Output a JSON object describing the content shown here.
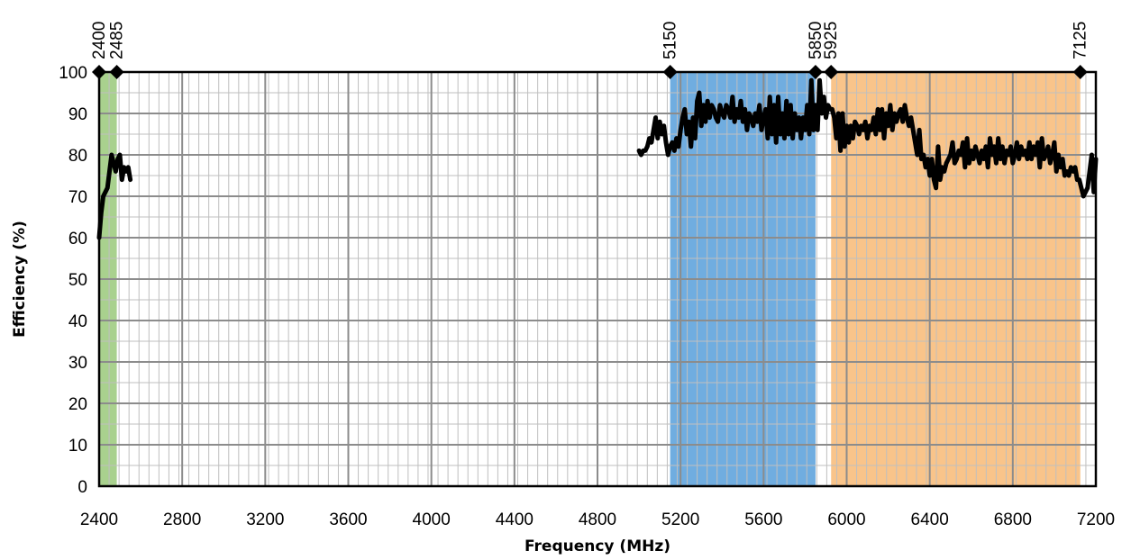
{
  "chart_data": {
    "type": "line",
    "xlabel": "Frequency (MHz)",
    "ylabel": "Efficiency (%)",
    "xlim": [
      2400,
      7200
    ],
    "ylim": [
      0,
      100
    ],
    "x_ticks": [
      2400,
      2800,
      3200,
      3600,
      4000,
      4400,
      4800,
      5200,
      5600,
      6000,
      6400,
      6800,
      7200
    ],
    "y_ticks": [
      0,
      10,
      20,
      30,
      40,
      50,
      60,
      70,
      80,
      90,
      100
    ],
    "grid": true,
    "bands": [
      {
        "start": 2400,
        "end": 2485,
        "color": "#a9d18e"
      },
      {
        "start": 5150,
        "end": 5850,
        "color": "#70ade0"
      },
      {
        "start": 5925,
        "end": 7125,
        "color": "#f9c48a"
      }
    ],
    "markers": [
      {
        "x": 2400,
        "y": 100,
        "label": "2400"
      },
      {
        "x": 2485,
        "y": 100,
        "label": "2485"
      },
      {
        "x": 5150,
        "y": 100,
        "label": "5150"
      },
      {
        "x": 5850,
        "y": 100,
        "label": "5850"
      },
      {
        "x": 5925,
        "y": 100,
        "label": "5925"
      },
      {
        "x": 7125,
        "y": 100,
        "label": "7125"
      }
    ],
    "series": [
      {
        "color": "#000000",
        "segments": [
          [
            [
              2400,
              60
            ],
            [
              2410,
              66
            ],
            [
              2420,
              70
            ],
            [
              2430,
              71
            ],
            [
              2440,
              72
            ],
            [
              2450,
              76
            ],
            [
              2460,
              80
            ],
            [
              2470,
              78
            ],
            [
              2480,
              76
            ],
            [
              2490,
              79
            ],
            [
              2500,
              80
            ],
            [
              2510,
              74
            ],
            [
              2520,
              77
            ],
            [
              2530,
              76
            ],
            [
              2540,
              77
            ],
            [
              2550,
              74
            ]
          ],
          [
            [
              5000,
              81
            ],
            [
              5010,
              80
            ],
            [
              5020,
              81
            ],
            [
              5030,
              81
            ],
            [
              5040,
              82
            ],
            [
              5050,
              84
            ],
            [
              5060,
              83
            ],
            [
              5070,
              86
            ],
            [
              5080,
              89
            ],
            [
              5090,
              84
            ],
            [
              5100,
              88
            ],
            [
              5110,
              85
            ],
            [
              5120,
              87
            ],
            [
              5130,
              83
            ],
            [
              5140,
              80
            ],
            [
              5150,
              82
            ],
            [
              5160,
              83
            ],
            [
              5170,
              81
            ],
            [
              5180,
              84
            ],
            [
              5190,
              82
            ],
            [
              5200,
              86
            ],
            [
              5210,
              89
            ],
            [
              5220,
              91
            ],
            [
              5230,
              85
            ],
            [
              5240,
              88
            ],
            [
              5250,
              82
            ],
            [
              5260,
              89
            ],
            [
              5270,
              84
            ],
            [
              5280,
              93
            ],
            [
              5290,
              95
            ],
            [
              5300,
              87
            ],
            [
              5310,
              92
            ],
            [
              5320,
              88
            ],
            [
              5330,
              93
            ],
            [
              5340,
              89
            ],
            [
              5350,
              92
            ],
            [
              5360,
              91
            ],
            [
              5370,
              89
            ],
            [
              5380,
              88
            ],
            [
              5390,
              92
            ],
            [
              5400,
              90
            ],
            [
              5410,
              89
            ],
            [
              5420,
              92
            ],
            [
              5430,
              91
            ],
            [
              5440,
              89
            ],
            [
              5450,
              94
            ],
            [
              5460,
              88
            ],
            [
              5470,
              91
            ],
            [
              5480,
              89
            ],
            [
              5490,
              93
            ],
            [
              5500,
              88
            ],
            [
              5510,
              91
            ],
            [
              5520,
              86
            ],
            [
              5530,
              90
            ],
            [
              5540,
              89
            ],
            [
              5550,
              87
            ],
            [
              5560,
              90
            ],
            [
              5570,
              88
            ],
            [
              5580,
              92
            ],
            [
              5590,
              86
            ],
            [
              5600,
              89
            ],
            [
              5610,
              91
            ],
            [
              5620,
              84
            ],
            [
              5630,
              94
            ],
            [
              5640,
              85
            ],
            [
              5650,
              92
            ],
            [
              5660,
              83
            ],
            [
              5670,
              94
            ],
            [
              5680,
              85
            ],
            [
              5690,
              90
            ],
            [
              5700,
              84
            ],
            [
              5710,
              93
            ],
            [
              5720,
              85
            ],
            [
              5730,
              92
            ],
            [
              5740,
              84
            ],
            [
              5750,
              90
            ],
            [
              5760,
              86
            ],
            [
              5770,
              89
            ],
            [
              5780,
              84
            ],
            [
              5790,
              89
            ],
            [
              5800,
              86
            ],
            [
              5810,
              92
            ],
            [
              5820,
              85
            ],
            [
              5830,
              98
            ],
            [
              5840,
              86
            ],
            [
              5850,
              92
            ],
            [
              5860,
              86
            ],
            [
              5870,
              98
            ],
            [
              5880,
              90
            ],
            [
              5890,
              94
            ],
            [
              5900,
              89
            ],
            [
              5910,
              92
            ],
            [
              5920,
              91
            ],
            [
              5930,
              91
            ],
            [
              5940,
              89
            ],
            [
              5950,
              84
            ],
            [
              5960,
              90
            ],
            [
              5970,
              81
            ],
            [
              5980,
              90
            ],
            [
              5990,
              82
            ],
            [
              6000,
              87
            ],
            [
              6010,
              83
            ],
            [
              6020,
              87
            ],
            [
              6030,
              84
            ],
            [
              6040,
              88
            ],
            [
              6050,
              87
            ],
            [
              6060,
              85
            ],
            [
              6070,
              87
            ],
            [
              6080,
              86
            ],
            [
              6090,
              88
            ],
            [
              6100,
              84
            ],
            [
              6110,
              87
            ],
            [
              6120,
              86
            ],
            [
              6130,
              89
            ],
            [
              6140,
              85
            ],
            [
              6150,
              91
            ],
            [
              6160,
              86
            ],
            [
              6170,
              91
            ],
            [
              6180,
              84
            ],
            [
              6190,
              90
            ],
            [
              6200,
              87
            ],
            [
              6210,
              92
            ],
            [
              6220,
              86
            ],
            [
              6230,
              90
            ],
            [
              6240,
              88
            ],
            [
              6250,
              90
            ],
            [
              6260,
              91
            ],
            [
              6270,
              88
            ],
            [
              6280,
              92
            ],
            [
              6290,
              89
            ],
            [
              6300,
              87
            ],
            [
              6310,
              89
            ],
            [
              6320,
              86
            ],
            [
              6330,
              83
            ],
            [
              6340,
              80
            ],
            [
              6350,
              86
            ],
            [
              6360,
              79
            ],
            [
              6370,
              80
            ],
            [
              6380,
              77
            ],
            [
              6390,
              79
            ],
            [
              6400,
              75
            ],
            [
              6410,
              79
            ],
            [
              6420,
              74
            ],
            [
              6430,
              72
            ],
            [
              6440,
              82
            ],
            [
              6450,
              74
            ],
            [
              6460,
              77
            ],
            [
              6470,
              76
            ],
            [
              6480,
              78
            ],
            [
              6490,
              79
            ],
            [
              6500,
              80
            ],
            [
              6510,
              83
            ],
            [
              6520,
              78
            ],
            [
              6530,
              79
            ],
            [
              6540,
              81
            ],
            [
              6550,
              80
            ],
            [
              6560,
              83
            ],
            [
              6570,
              77
            ],
            [
              6580,
              84
            ],
            [
              6590,
              78
            ],
            [
              6600,
              81
            ],
            [
              6610,
              79
            ],
            [
              6620,
              82
            ],
            [
              6630,
              80
            ],
            [
              6640,
              78
            ],
            [
              6650,
              81
            ],
            [
              6660,
              79
            ],
            [
              6670,
              82
            ],
            [
              6680,
              77
            ],
            [
              6690,
              84
            ],
            [
              6700,
              80
            ],
            [
              6710,
              82
            ],
            [
              6720,
              78
            ],
            [
              6730,
              84
            ],
            [
              6740,
              79
            ],
            [
              6750,
              82
            ],
            [
              6760,
              78
            ],
            [
              6770,
              81
            ],
            [
              6780,
              80
            ],
            [
              6790,
              82
            ],
            [
              6800,
              78
            ],
            [
              6810,
              80
            ],
            [
              6820,
              83
            ],
            [
              6830,
              79
            ],
            [
              6840,
              82
            ],
            [
              6850,
              80
            ],
            [
              6860,
              81
            ],
            [
              6870,
              79
            ],
            [
              6880,
              83
            ],
            [
              6890,
              79
            ],
            [
              6900,
              82
            ],
            [
              6910,
              80
            ],
            [
              6920,
              83
            ],
            [
              6930,
              77
            ],
            [
              6940,
              84
            ],
            [
              6950,
              79
            ],
            [
              6960,
              80
            ],
            [
              6970,
              82
            ],
            [
              6980,
              78
            ],
            [
              6990,
              80
            ],
            [
              7000,
              83
            ],
            [
              7010,
              76
            ],
            [
              7020,
              80
            ],
            [
              7030,
              77
            ],
            [
              7040,
              79
            ],
            [
              7050,
              75
            ],
            [
              7060,
              76
            ],
            [
              7070,
              75
            ],
            [
              7080,
              77
            ],
            [
              7090,
              76
            ],
            [
              7100,
              77
            ],
            [
              7110,
              74
            ],
            [
              7120,
              74
            ],
            [
              7130,
              72
            ],
            [
              7140,
              70
            ],
            [
              7150,
              71
            ],
            [
              7160,
              72
            ],
            [
              7170,
              76
            ],
            [
              7180,
              80
            ],
            [
              7190,
              71
            ],
            [
              7200,
              79
            ]
          ]
        ]
      }
    ]
  }
}
